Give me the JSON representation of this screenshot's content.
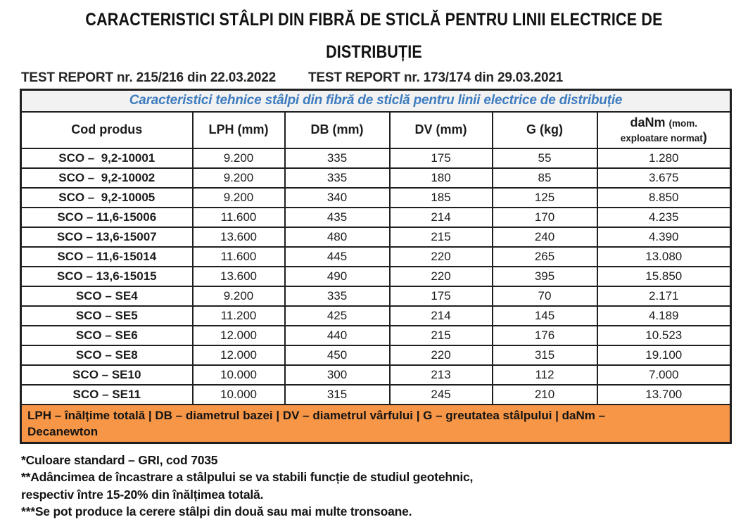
{
  "title": {
    "line1": "CARACTERISTICI STÂLPI DIN FIBRĂ DE STICLĂ PENTRU LINII ELECTRICE DE",
    "line2": "DISTRIBUȚIE"
  },
  "reports": {
    "report1": "TEST REPORT nr. 215/216 din 22.03.2022",
    "report2": "TEST REPORT nr. 173/174 din 29.03.2021"
  },
  "table": {
    "caption": "Caracteristici tehnice stâlpi din fibră de sticlă pentru linii electrice de distribuție",
    "columns": [
      "Cod produs",
      "LPH (mm)",
      "DB (mm)",
      "DV (mm)",
      "G (kg)"
    ],
    "danm_header": {
      "main": "daNm",
      "small1": "(mom.",
      "small2": "exploatare normat",
      "paren_close": ")"
    },
    "rows": [
      [
        "SCO –  9,2-10001",
        "9.200",
        "335",
        "175",
        "55",
        "1.280"
      ],
      [
        "SCO –  9,2-10002",
        "9.200",
        "335",
        "180",
        "85",
        "3.675"
      ],
      [
        "SCO –  9,2-10005",
        "9.200",
        "340",
        "185",
        "125",
        "8.850"
      ],
      [
        "SCO – 11,6-15006",
        "11.600",
        "435",
        "214",
        "170",
        "4.235"
      ],
      [
        "SCO – 13,6-15007",
        "13.600",
        "480",
        "215",
        "240",
        "4.390"
      ],
      [
        "SCO – 11,6-15014",
        "11.600",
        "445",
        "220",
        "265",
        "13.080"
      ],
      [
        "SCO – 13,6-15015",
        "13.600",
        "490",
        "220",
        "395",
        "15.850"
      ],
      [
        "SCO – SE4",
        "9.200",
        "335",
        "175",
        "70",
        "2.171"
      ],
      [
        "SCO – SE5",
        "11.200",
        "425",
        "214",
        "145",
        "4.189"
      ],
      [
        "SCO – SE6",
        "12.000",
        "440",
        "215",
        "176",
        "10.523"
      ],
      [
        "SCO – SE8",
        "12.000",
        "450",
        "220",
        "315",
        "19.100"
      ],
      [
        "SCO – SE10",
        "10.000",
        "300",
        "213",
        "112",
        "7.000"
      ],
      [
        "SCO – SE11",
        "10.000",
        "315",
        "245",
        "210",
        "13.700"
      ]
    ],
    "legend": "LPH – înălțime totală | DB – diametrul bazei | DV – diametrul vârfului | G – greutatea stâlpului | daNm –\nDecanewton"
  },
  "footnotes": [
    "*Culoare standard – GRI, cod 7035",
    "**Adâncimea de încastrare a stâlpului se va stabili funcție de studiul geotehnic,\nrespectiv între 15-20% din înălțimea totală.",
    "***Se pot produce la cerere stâlpi din două sau mai multe tronsoane."
  ],
  "colors": {
    "caption_blue": "#3e7cbf",
    "legend_orange": "#f79646",
    "caption_background": "#f2f2f2",
    "border_black": "#1f1f1f"
  }
}
